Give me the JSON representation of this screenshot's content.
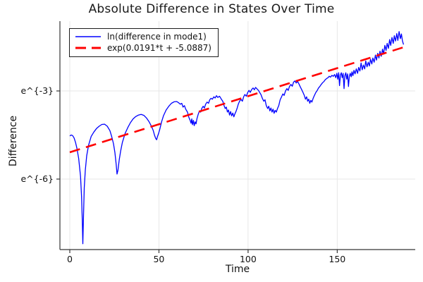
{
  "window": {
    "background": "#ffffff"
  },
  "chart_data": {
    "type": "line",
    "title": "Absolute Difference in States Over Time",
    "xlabel": "Time",
    "ylabel": "Difference",
    "grid": true,
    "legend_position": "top-left",
    "x_axis": {
      "ticks": [
        0,
        50,
        100,
        150
      ],
      "tick_labels": [
        "0",
        "50",
        "100",
        "150"
      ],
      "range": [
        -5.5,
        193.5
      ]
    },
    "y_axis": {
      "scale": "log-e",
      "ticks": [
        -3,
        -6
      ],
      "tick_labels": [
        "e^{-3}",
        "e^{-6}"
      ],
      "range_ln": [
        -8.4,
        -0.62
      ]
    },
    "colors": {
      "series": "#0000ff",
      "fit": "#ff0000",
      "grid": "#e7e7e7",
      "spine": "#363636",
      "text": "#111111"
    },
    "series": [
      {
        "name": "ln(difference in mode1)",
        "color": "#0000ff",
        "line_style": "solid",
        "line_width": 1.3,
        "points": [
          [
            0,
            -4.53
          ],
          [
            0.8,
            -4.5
          ],
          [
            1.6,
            -4.52
          ],
          [
            2.4,
            -4.6
          ],
          [
            3.2,
            -4.75
          ],
          [
            4,
            -4.95
          ],
          [
            5,
            -5.3
          ],
          [
            6,
            -5.9
          ],
          [
            6.6,
            -6.6
          ],
          [
            7,
            -7.4
          ],
          [
            7.3,
            -8.2
          ],
          [
            7.7,
            -7.2
          ],
          [
            8.1,
            -6.3
          ],
          [
            8.7,
            -5.7
          ],
          [
            9.5,
            -5.2
          ],
          [
            10.5,
            -4.85
          ],
          [
            12,
            -4.55
          ],
          [
            13.5,
            -4.4
          ],
          [
            15,
            -4.28
          ],
          [
            16.5,
            -4.2
          ],
          [
            18,
            -4.14
          ],
          [
            19.5,
            -4.13
          ],
          [
            21,
            -4.2
          ],
          [
            22.5,
            -4.35
          ],
          [
            23.5,
            -4.55
          ],
          [
            24.5,
            -4.8
          ],
          [
            25.3,
            -5.1
          ],
          [
            26,
            -5.5
          ],
          [
            26.5,
            -5.83
          ],
          [
            27,
            -5.7
          ],
          [
            27.7,
            -5.35
          ],
          [
            28.5,
            -5.05
          ],
          [
            29.5,
            -4.75
          ],
          [
            31,
            -4.45
          ],
          [
            32.5,
            -4.25
          ],
          [
            34,
            -4.08
          ],
          [
            35.5,
            -3.95
          ],
          [
            37,
            -3.87
          ],
          [
            38.5,
            -3.82
          ],
          [
            40,
            -3.8
          ],
          [
            41.5,
            -3.83
          ],
          [
            43,
            -3.92
          ],
          [
            44.5,
            -4.05
          ],
          [
            45.8,
            -4.2
          ],
          [
            46.8,
            -4.35
          ],
          [
            47.5,
            -4.5
          ],
          [
            48.2,
            -4.62
          ],
          [
            48.7,
            -4.66
          ],
          [
            49.2,
            -4.55
          ],
          [
            49.8,
            -4.45
          ],
          [
            50.5,
            -4.3
          ],
          [
            51.5,
            -4.05
          ],
          [
            52.5,
            -3.85
          ],
          [
            54,
            -3.65
          ],
          [
            55.5,
            -3.52
          ],
          [
            57,
            -3.42
          ],
          [
            58.5,
            -3.37
          ],
          [
            60,
            -3.36
          ],
          [
            61,
            -3.4
          ],
          [
            62,
            -3.45
          ],
          [
            62.8,
            -3.42
          ],
          [
            63.5,
            -3.55
          ],
          [
            64.3,
            -3.5
          ],
          [
            65,
            -3.62
          ],
          [
            66,
            -3.72
          ],
          [
            66.8,
            -3.9
          ],
          [
            67.5,
            -4.0
          ],
          [
            68,
            -4.1
          ],
          [
            68.4,
            -3.95
          ],
          [
            68.8,
            -4.15
          ],
          [
            69.3,
            -4.0
          ],
          [
            69.8,
            -4.18
          ],
          [
            70.3,
            -4.05
          ],
          [
            70.8,
            -4.12
          ],
          [
            71.3,
            -3.95
          ],
          [
            72,
            -3.8
          ],
          [
            72.7,
            -3.68
          ],
          [
            73.4,
            -3.72
          ],
          [
            74,
            -3.6
          ],
          [
            74.8,
            -3.52
          ],
          [
            75.5,
            -3.58
          ],
          [
            76.2,
            -3.45
          ],
          [
            77,
            -3.38
          ],
          [
            77.8,
            -3.42
          ],
          [
            78.5,
            -3.3
          ],
          [
            79.2,
            -3.25
          ],
          [
            80,
            -3.28
          ],
          [
            80.8,
            -3.2
          ],
          [
            81.5,
            -3.24
          ],
          [
            82.3,
            -3.16
          ],
          [
            83,
            -3.22
          ],
          [
            84,
            -3.18
          ],
          [
            85,
            -3.28
          ],
          [
            85.8,
            -3.35
          ],
          [
            86.5,
            -3.5
          ],
          [
            87.2,
            -3.6
          ],
          [
            87.8,
            -3.55
          ],
          [
            88.4,
            -3.72
          ],
          [
            89,
            -3.65
          ],
          [
            89.6,
            -3.82
          ],
          [
            90.2,
            -3.7
          ],
          [
            90.8,
            -3.85
          ],
          [
            91.4,
            -3.75
          ],
          [
            92,
            -3.88
          ],
          [
            92.6,
            -3.78
          ],
          [
            93.2,
            -3.7
          ],
          [
            93.8,
            -3.6
          ],
          [
            94.5,
            -3.45
          ],
          [
            95.2,
            -3.35
          ],
          [
            96,
            -3.28
          ],
          [
            96.8,
            -3.35
          ],
          [
            97.5,
            -3.2
          ],
          [
            98.2,
            -3.12
          ],
          [
            99,
            -3.18
          ],
          [
            99.8,
            -3.05
          ],
          [
            100.5,
            -2.98
          ],
          [
            101.2,
            -3.05
          ],
          [
            102,
            -2.95
          ],
          [
            102.8,
            -2.9
          ],
          [
            103.5,
            -2.96
          ],
          [
            104.2,
            -2.88
          ],
          [
            105,
            -2.93
          ],
          [
            105.8,
            -2.98
          ],
          [
            106.5,
            -3.05
          ],
          [
            107.2,
            -3.12
          ],
          [
            108,
            -3.25
          ],
          [
            108.8,
            -3.35
          ],
          [
            109.5,
            -3.3
          ],
          [
            110.2,
            -3.5
          ],
          [
            111,
            -3.6
          ],
          [
            111.6,
            -3.52
          ],
          [
            112.2,
            -3.68
          ],
          [
            112.8,
            -3.58
          ],
          [
            113.4,
            -3.72
          ],
          [
            114,
            -3.62
          ],
          [
            114.6,
            -3.76
          ],
          [
            115.2,
            -3.66
          ],
          [
            115.8,
            -3.72
          ],
          [
            116.5,
            -3.6
          ],
          [
            117.2,
            -3.5
          ],
          [
            118,
            -3.3
          ],
          [
            118.8,
            -3.2
          ],
          [
            119.5,
            -3.1
          ],
          [
            120.2,
            -3.15
          ],
          [
            121,
            -3.0
          ],
          [
            121.8,
            -2.92
          ],
          [
            122.5,
            -2.98
          ],
          [
            123.2,
            -2.85
          ],
          [
            124,
            -2.78
          ],
          [
            124.8,
            -2.84
          ],
          [
            125.5,
            -2.7
          ],
          [
            126.2,
            -2.66
          ],
          [
            127,
            -2.73
          ],
          [
            127.8,
            -2.68
          ],
          [
            128.5,
            -2.76
          ],
          [
            129.2,
            -2.85
          ],
          [
            130,
            -2.95
          ],
          [
            130.8,
            -3.05
          ],
          [
            131.5,
            -3.15
          ],
          [
            132.2,
            -3.28
          ],
          [
            132.8,
            -3.2
          ],
          [
            133.4,
            -3.35
          ],
          [
            134,
            -3.28
          ],
          [
            134.6,
            -3.42
          ],
          [
            135.2,
            -3.32
          ],
          [
            135.8,
            -3.38
          ],
          [
            136.5,
            -3.25
          ],
          [
            137.2,
            -3.15
          ],
          [
            138,
            -3.05
          ],
          [
            138.8,
            -2.98
          ],
          [
            139.5,
            -2.9
          ],
          [
            140.2,
            -2.85
          ],
          [
            141,
            -2.78
          ],
          [
            141.8,
            -2.72
          ],
          [
            142.5,
            -2.68
          ],
          [
            143.2,
            -2.62
          ],
          [
            144,
            -2.58
          ],
          [
            144.8,
            -2.55
          ],
          [
            145.5,
            -2.5
          ],
          [
            146.2,
            -2.53
          ],
          [
            147,
            -2.47
          ],
          [
            147.8,
            -2.5
          ],
          [
            148.5,
            -2.44
          ],
          [
            149.2,
            -2.55
          ],
          [
            149.8,
            -2.4
          ],
          [
            150.3,
            -2.6
          ],
          [
            150.8,
            -2.38
          ],
          [
            151.3,
            -2.82
          ],
          [
            151.8,
            -2.45
          ],
          [
            152.3,
            -2.38
          ],
          [
            152.8,
            -2.55
          ],
          [
            153.3,
            -2.4
          ],
          [
            153.8,
            -2.92
          ],
          [
            154.3,
            -2.48
          ],
          [
            154.8,
            -2.38
          ],
          [
            155.3,
            -2.6
          ],
          [
            155.8,
            -2.42
          ],
          [
            156.3,
            -2.85
          ],
          [
            156.8,
            -2.5
          ],
          [
            157.3,
            -2.4
          ],
          [
            157.8,
            -2.52
          ],
          [
            158.3,
            -2.35
          ],
          [
            158.8,
            -2.48
          ],
          [
            159.4,
            -2.3
          ],
          [
            160,
            -2.42
          ],
          [
            160.7,
            -2.25
          ],
          [
            161.4,
            -2.4
          ],
          [
            162,
            -2.2
          ],
          [
            162.7,
            -2.32
          ],
          [
            163.4,
            -2.05
          ],
          [
            164,
            -2.28
          ],
          [
            164.7,
            -2.12
          ],
          [
            165.4,
            -2.25
          ],
          [
            166,
            -1.98
          ],
          [
            166.7,
            -2.18
          ],
          [
            167.4,
            -2.02
          ],
          [
            168,
            -2.15
          ],
          [
            168.7,
            -1.92
          ],
          [
            169.4,
            -2.08
          ],
          [
            170,
            -1.88
          ],
          [
            170.7,
            -2.02
          ],
          [
            171.4,
            -1.78
          ],
          [
            172,
            -1.95
          ],
          [
            172.7,
            -1.72
          ],
          [
            173.4,
            -1.88
          ],
          [
            174,
            -1.65
          ],
          [
            174.7,
            -1.82
          ],
          [
            175.4,
            -1.58
          ],
          [
            176,
            -1.75
          ],
          [
            176.7,
            -1.45
          ],
          [
            177.4,
            -1.62
          ],
          [
            178,
            -1.38
          ],
          [
            178.7,
            -1.55
          ],
          [
            179.4,
            -1.25
          ],
          [
            180,
            -1.45
          ],
          [
            180.7,
            -1.18
          ],
          [
            181.4,
            -1.38
          ],
          [
            182,
            -1.12
          ],
          [
            182.7,
            -1.3
          ],
          [
            183.4,
            -1.05
          ],
          [
            184,
            -1.28
          ],
          [
            184.7,
            -0.98
          ],
          [
            185.4,
            -1.22
          ],
          [
            186,
            -1.06
          ],
          [
            186.6,
            -1.3
          ],
          [
            187.2,
            -1.42
          ]
        ]
      },
      {
        "name": "exp(0.0191*t + -5.0887)",
        "color": "#ff0000",
        "line_style": "dashed",
        "line_width": 2.6,
        "fit": {
          "slope": 0.0191,
          "intercept": -5.0887,
          "t_start": 0,
          "t_end": 187
        }
      }
    ]
  }
}
